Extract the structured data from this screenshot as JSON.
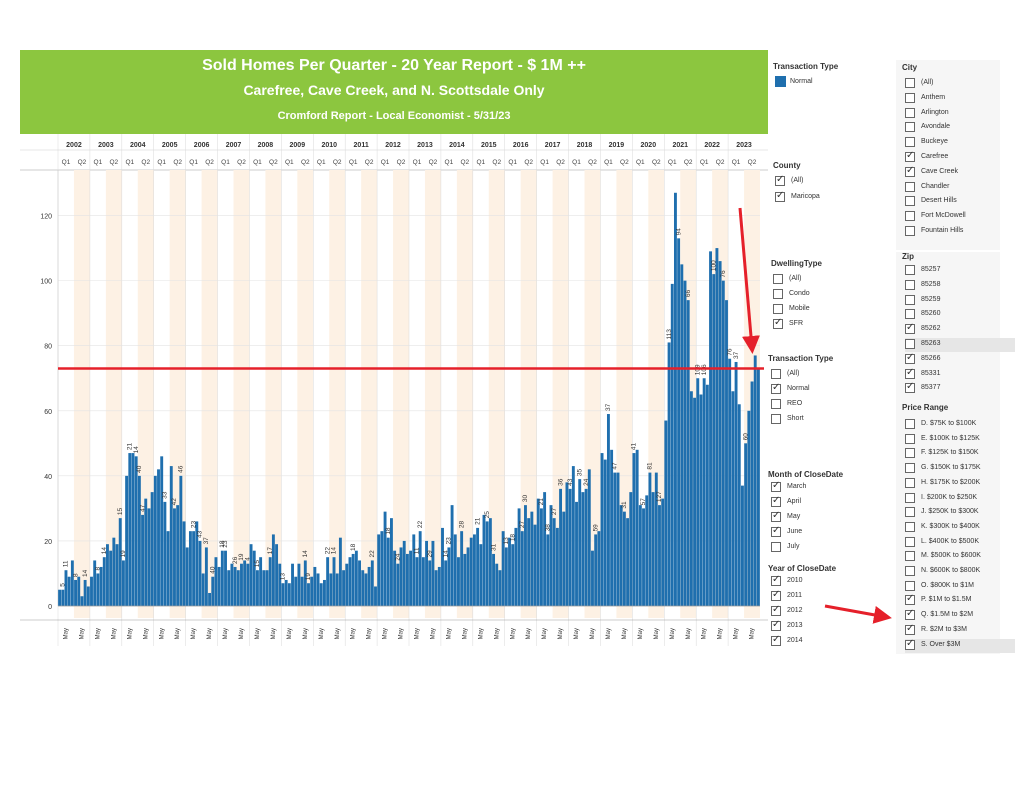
{
  "banner": {
    "title": "Sold Homes Per Quarter - 20 Year Report - $ 1M ++",
    "subtitle": "Carefree, Cave Creek, and N. Scottsdale Only",
    "source": "Cromford Report - Local Economist - 5/31/23"
  },
  "colors": {
    "bar": "#1f6fae",
    "band": "#fdf1e4",
    "banner": "#8cc63f",
    "annotation": "#e5202a"
  },
  "chart_data": {
    "type": "bar",
    "years": [
      "2002",
      "2003",
      "2004",
      "2005",
      "2006",
      "2007",
      "2008",
      "2009",
      "2010",
      "2011",
      "2012",
      "2013",
      "2014",
      "2015",
      "2016",
      "2017",
      "2018",
      "2019",
      "2020",
      "2021",
      "2022",
      "2023"
    ],
    "quarter_labels": [
      "Q1",
      "Q2"
    ],
    "yticks": [
      0,
      20,
      40,
      60,
      80,
      100,
      120
    ],
    "ylim": [
      0,
      134
    ],
    "xtick_label": "May",
    "reference_line": 73,
    "grid": true,
    "series": [
      {
        "values": [
          5,
          5,
          11,
          9,
          14,
          8,
          9,
          3,
          8,
          6,
          9,
          14,
          10,
          12,
          15,
          19,
          17,
          21,
          19,
          27,
          14,
          40,
          47,
          47,
          46,
          40,
          28,
          33,
          30,
          35,
          40,
          42,
          46,
          32,
          23,
          43,
          30,
          31,
          40,
          26,
          18,
          23,
          23,
          26,
          20,
          10,
          18,
          4,
          9,
          15,
          12,
          17,
          17,
          11,
          13,
          12,
          11,
          13,
          14,
          13,
          19,
          17,
          11,
          15,
          11,
          11,
          15,
          22,
          19,
          13,
          7,
          8,
          7,
          13,
          9,
          13,
          9,
          14,
          7,
          9,
          12,
          10,
          7,
          8,
          15,
          10,
          15,
          10,
          21,
          11,
          13,
          15,
          16,
          17,
          14,
          11,
          10,
          12,
          14,
          6,
          22,
          23,
          29,
          21,
          27,
          17,
          13,
          18,
          20,
          16,
          17,
          22,
          15,
          23,
          15,
          20,
          14,
          20,
          11,
          12,
          24,
          14,
          18,
          31,
          22,
          15,
          23,
          16,
          18,
          21,
          22,
          24,
          19,
          28,
          26,
          27,
          16,
          13,
          11,
          23,
          18,
          21,
          19,
          24,
          30,
          23,
          31,
          27,
          29,
          25,
          33,
          30,
          35,
          22,
          31,
          27,
          24,
          36,
          29,
          38,
          36,
          43,
          32,
          39,
          35,
          36,
          42,
          17,
          22,
          23,
          47,
          45,
          59,
          48,
          41,
          41,
          31,
          29,
          27,
          35,
          47,
          48,
          31,
          30,
          34,
          41,
          35,
          41,
          31,
          33,
          57,
          81,
          99,
          127,
          113,
          105,
          100,
          94,
          66,
          64,
          70,
          65,
          70,
          68,
          109,
          102,
          110,
          106,
          100,
          94,
          76,
          66,
          75,
          62,
          37,
          50,
          60,
          69,
          77,
          73
        ],
        "labels": [
          {
            "i": 1,
            "t": "5"
          },
          {
            "i": 2,
            "t": "11"
          },
          {
            "i": 5,
            "t": "8"
          },
          {
            "i": 8,
            "t": "14"
          },
          {
            "i": 12,
            "t": "8"
          },
          {
            "i": 14,
            "t": "14"
          },
          {
            "i": 19,
            "t": "15"
          },
          {
            "i": 20,
            "t": "19"
          },
          {
            "i": 22,
            "t": "21"
          },
          {
            "i": 24,
            "t": "14"
          },
          {
            "i": 25,
            "t": "40"
          },
          {
            "i": 26,
            "t": "47"
          },
          {
            "i": 33,
            "t": "33"
          },
          {
            "i": 36,
            "t": "42"
          },
          {
            "i": 38,
            "t": "46"
          },
          {
            "i": 42,
            "t": "23"
          },
          {
            "i": 44,
            "t": "43"
          },
          {
            "i": 46,
            "t": "37"
          },
          {
            "i": 48,
            "t": "40"
          },
          {
            "i": 51,
            "t": "18"
          },
          {
            "i": 52,
            "t": "23"
          },
          {
            "i": 55,
            "t": "26"
          },
          {
            "i": 57,
            "t": "19"
          },
          {
            "i": 59,
            "t": "4"
          },
          {
            "i": 62,
            "t": "15"
          },
          {
            "i": 66,
            "t": "17"
          },
          {
            "i": 70,
            "t": "13"
          },
          {
            "i": 77,
            "t": "14"
          },
          {
            "i": 78,
            "t": "19"
          },
          {
            "i": 84,
            "t": "22"
          },
          {
            "i": 86,
            "t": "14"
          },
          {
            "i": 92,
            "t": "18"
          },
          {
            "i": 98,
            "t": "22"
          },
          {
            "i": 103,
            "t": "18"
          },
          {
            "i": 106,
            "t": "24"
          },
          {
            "i": 112,
            "t": "11"
          },
          {
            "i": 113,
            "t": "22"
          },
          {
            "i": 116,
            "t": "29"
          },
          {
            "i": 121,
            "t": "14"
          },
          {
            "i": 122,
            "t": "23"
          },
          {
            "i": 126,
            "t": "28"
          },
          {
            "i": 131,
            "t": "21"
          },
          {
            "i": 134,
            "t": "25"
          },
          {
            "i": 136,
            "t": "31"
          },
          {
            "i": 140,
            "t": "13"
          },
          {
            "i": 142,
            "t": "18"
          },
          {
            "i": 145,
            "t": "27"
          },
          {
            "i": 146,
            "t": "30"
          },
          {
            "i": 151,
            "t": "21"
          },
          {
            "i": 153,
            "t": "38"
          },
          {
            "i": 155,
            "t": "27"
          },
          {
            "i": 157,
            "t": "36"
          },
          {
            "i": 160,
            "t": "43"
          },
          {
            "i": 163,
            "t": "35"
          },
          {
            "i": 165,
            "t": "24"
          },
          {
            "i": 168,
            "t": "59"
          },
          {
            "i": 172,
            "t": "37"
          },
          {
            "i": 174,
            "t": "47"
          },
          {
            "i": 177,
            "t": "31"
          },
          {
            "i": 180,
            "t": "41"
          },
          {
            "i": 183,
            "t": "57"
          },
          {
            "i": 185,
            "t": "81"
          },
          {
            "i": 188,
            "t": "127"
          },
          {
            "i": 191,
            "t": "113"
          },
          {
            "i": 194,
            "t": "94"
          },
          {
            "i": 197,
            "t": "66"
          },
          {
            "i": 200,
            "t": "109"
          },
          {
            "i": 202,
            "t": "106"
          },
          {
            "i": 205,
            "t": "100"
          },
          {
            "i": 208,
            "t": "76"
          },
          {
            "i": 210,
            "t": "76"
          },
          {
            "i": 212,
            "t": "37"
          },
          {
            "i": 215,
            "t": "60"
          }
        ]
      }
    ]
  },
  "filters": {
    "transaction_type_legend": {
      "title": "Transaction Type",
      "items": [
        "Normal"
      ]
    },
    "county": {
      "title": "County",
      "items": [
        {
          "label": "(All)",
          "checked": true
        },
        {
          "label": "Maricopa",
          "checked": true
        }
      ]
    },
    "dwelling_type": {
      "title": "DwellingType",
      "items": [
        {
          "label": "(All)",
          "checked": false
        },
        {
          "label": "Condo",
          "checked": false
        },
        {
          "label": "Mobile",
          "checked": false
        },
        {
          "label": "SFR",
          "checked": true
        }
      ]
    },
    "transaction_type": {
      "title": "Transaction Type",
      "items": [
        {
          "label": "(All)",
          "checked": false
        },
        {
          "label": "Normal",
          "checked": true
        },
        {
          "label": "REO",
          "checked": false
        },
        {
          "label": "Short",
          "checked": false
        }
      ]
    },
    "month": {
      "title": "Month of CloseDate",
      "items": [
        {
          "label": "March",
          "checked": true
        },
        {
          "label": "April",
          "checked": true
        },
        {
          "label": "May",
          "checked": true
        },
        {
          "label": "June",
          "checked": true
        },
        {
          "label": "July",
          "checked": false
        }
      ]
    },
    "year": {
      "title": "Year of CloseDate",
      "items": [
        {
          "label": "2010",
          "checked": true
        },
        {
          "label": "2011",
          "checked": true
        },
        {
          "label": "2012",
          "checked": true
        },
        {
          "label": "2013",
          "checked": true
        },
        {
          "label": "2014",
          "checked": true
        }
      ]
    },
    "city": {
      "title": "City",
      "items": [
        {
          "label": "(All)",
          "checked": false
        },
        {
          "label": "Anthem",
          "checked": false
        },
        {
          "label": "Arlington",
          "checked": false
        },
        {
          "label": "Avondale",
          "checked": false
        },
        {
          "label": "Buckeye",
          "checked": false
        },
        {
          "label": "Carefree",
          "checked": true
        },
        {
          "label": "Cave Creek",
          "checked": true
        },
        {
          "label": "Chandler",
          "checked": false
        },
        {
          "label": "Desert Hills",
          "checked": false
        },
        {
          "label": "Fort McDowell",
          "checked": false
        },
        {
          "label": "Fountain Hills",
          "checked": false
        }
      ]
    },
    "zip": {
      "title": "Zip",
      "items": [
        {
          "label": "85257",
          "checked": false
        },
        {
          "label": "85258",
          "checked": false
        },
        {
          "label": "85259",
          "checked": false
        },
        {
          "label": "85260",
          "checked": false
        },
        {
          "label": "85262",
          "checked": true
        },
        {
          "label": "85263",
          "checked": false,
          "highlight": true
        },
        {
          "label": "85266",
          "checked": true
        },
        {
          "label": "85331",
          "checked": true
        },
        {
          "label": "85377",
          "checked": true
        }
      ]
    },
    "price_range": {
      "title": "Price Range",
      "items": [
        {
          "label": "D. $75K to $100K",
          "checked": false
        },
        {
          "label": "E. $100K to $125K",
          "checked": false
        },
        {
          "label": "F. $125K to $150K",
          "checked": false
        },
        {
          "label": "G. $150K to $175K",
          "checked": false
        },
        {
          "label": "H. $175K to $200K",
          "checked": false
        },
        {
          "label": "I. $200K to $250K",
          "checked": false
        },
        {
          "label": "J. $250K to $300K",
          "checked": false
        },
        {
          "label": "K. $300K to $400K",
          "checked": false
        },
        {
          "label": "L. $400K to $500K",
          "checked": false
        },
        {
          "label": "M. $500K to $600K",
          "checked": false
        },
        {
          "label": "N. $600K to $800K",
          "checked": false
        },
        {
          "label": "O. $800K to $1M",
          "checked": false
        },
        {
          "label": "P. $1M to $1.5M",
          "checked": true
        },
        {
          "label": "Q. $1.5M to $2M",
          "checked": true
        },
        {
          "label": "R. $2M to $3M",
          "checked": true
        },
        {
          "label": "S. Over $3M",
          "checked": true,
          "highlight": true
        }
      ]
    }
  }
}
